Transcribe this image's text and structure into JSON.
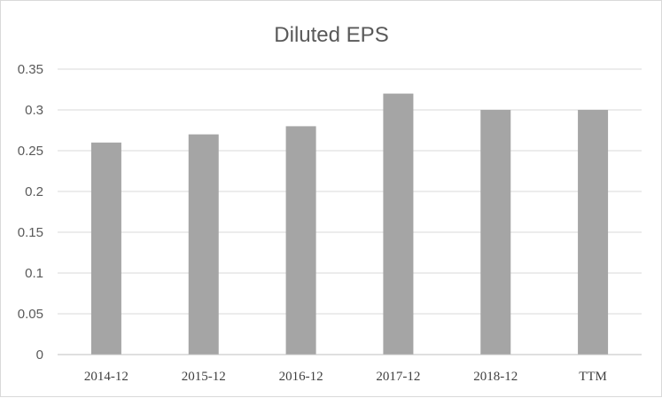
{
  "chart_data": {
    "type": "bar",
    "title": "Diluted EPS",
    "xlabel": "",
    "ylabel": "",
    "categories": [
      "2014-12",
      "2015-12",
      "2016-12",
      "2017-12",
      "2018-12",
      "TTM"
    ],
    "values": [
      0.26,
      0.27,
      0.28,
      0.32,
      0.3,
      0.3
    ],
    "ylim": [
      0,
      0.35
    ],
    "yticks": [
      "0",
      "0.05",
      "0.1",
      "0.15",
      "0.2",
      "0.25",
      "0.3",
      "0.35"
    ],
    "grid": true,
    "legend": "none",
    "colors": {
      "bar": "#a5a5a5",
      "grid": "#d9d9d9",
      "axis": "#bfbfbf"
    }
  }
}
